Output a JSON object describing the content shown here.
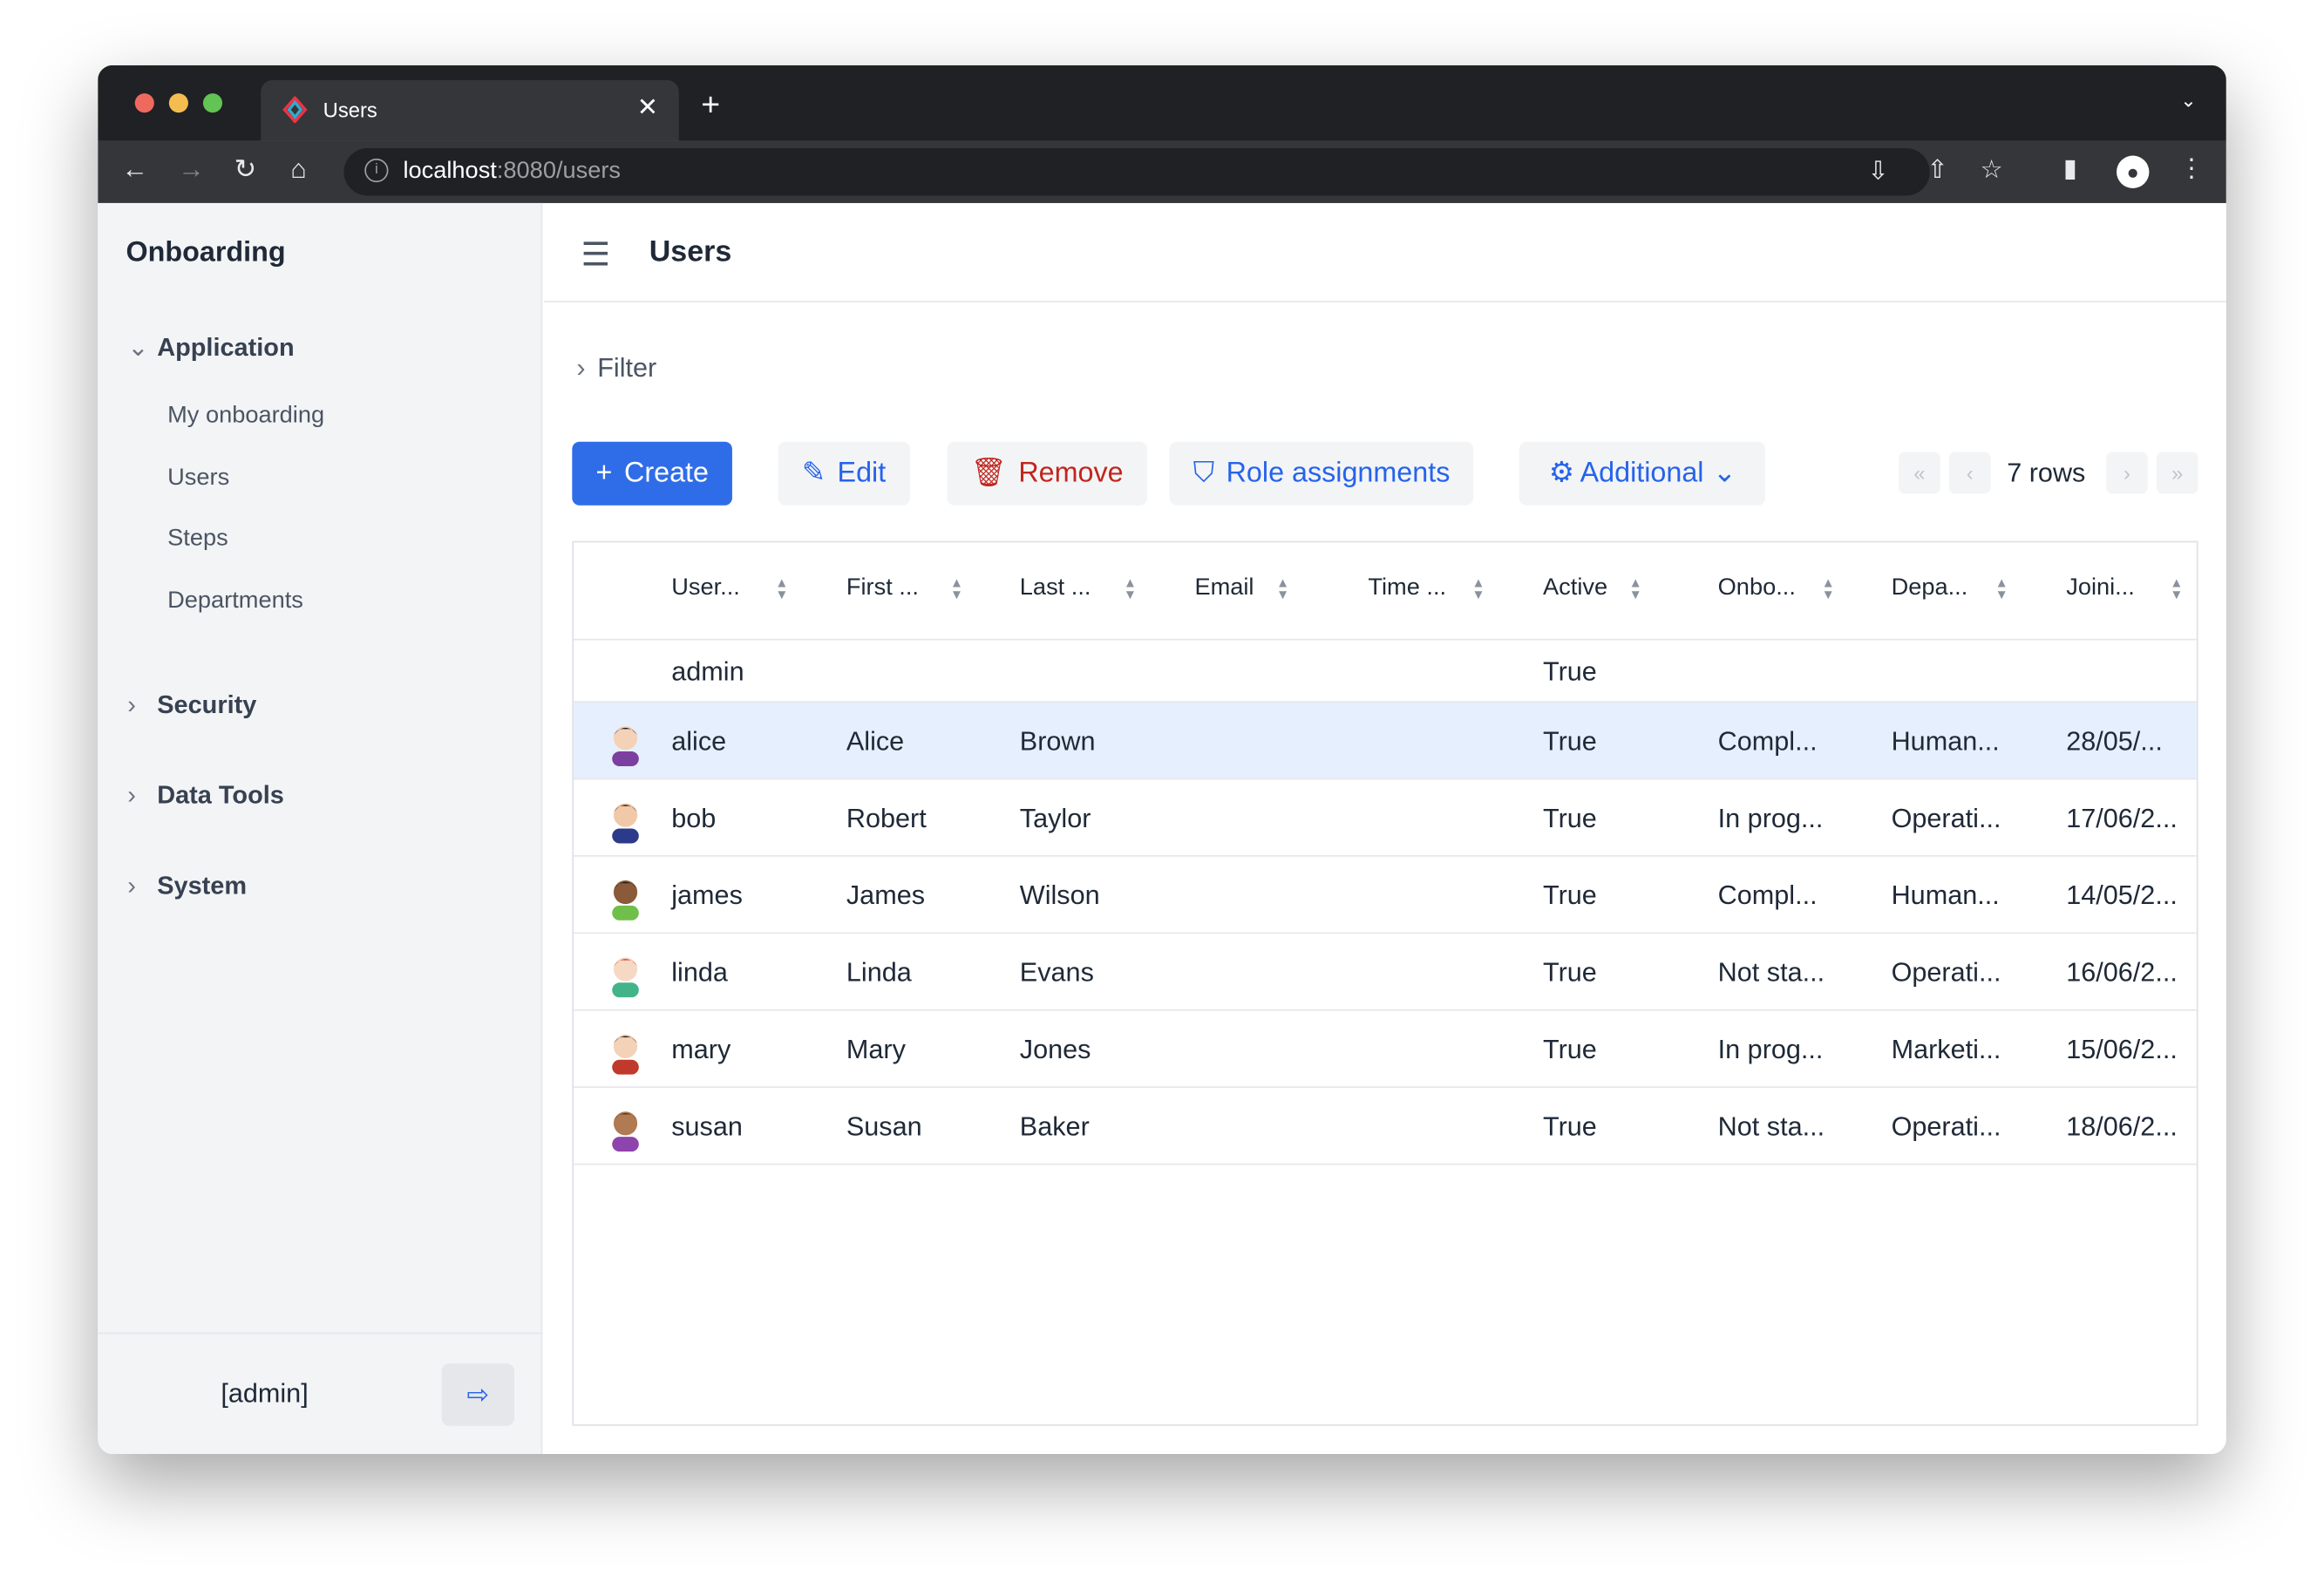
{
  "browser": {
    "tab_title": "Users",
    "url_host": "localhost",
    "url_path": ":8080/users",
    "colors": {
      "close": "#ee6a5f",
      "min": "#f5bd4f",
      "max": "#61c454"
    }
  },
  "sidebar": {
    "brand": "Onboarding",
    "groups": [
      {
        "label": "Application",
        "expanded": true,
        "items": [
          {
            "label": "My onboarding"
          },
          {
            "label": "Users"
          },
          {
            "label": "Steps"
          },
          {
            "label": "Departments"
          }
        ]
      },
      {
        "label": "Security",
        "expanded": false
      },
      {
        "label": "Data Tools",
        "expanded": false
      },
      {
        "label": "System",
        "expanded": false
      }
    ],
    "user": "[admin]"
  },
  "header": {
    "title": "Users"
  },
  "filter": {
    "label": "Filter"
  },
  "toolbar": {
    "create": "Create",
    "edit": "Edit",
    "remove": "Remove",
    "role_assignments": "Role assignments",
    "additional": "Additional",
    "rows": "7 rows"
  },
  "table": {
    "columns": [
      "User...",
      "First ...",
      "Last ...",
      "Email",
      "Time ...",
      "Active",
      "Onbo...",
      "Depa...",
      "Joini..."
    ],
    "rows": [
      {
        "cells": [
          "admin",
          "",
          "",
          "",
          "",
          "True",
          "",
          "",
          ""
        ],
        "avatar": false
      },
      {
        "cells": [
          "alice",
          "Alice",
          "Brown",
          "",
          "",
          "True",
          "Compl...",
          "Human...",
          "28/05/..."
        ],
        "avatar": true,
        "selected": true
      },
      {
        "cells": [
          "bob",
          "Robert",
          "Taylor",
          "",
          "",
          "True",
          "In prog...",
          "Operati...",
          "17/06/2..."
        ],
        "avatar": true
      },
      {
        "cells": [
          "james",
          "James",
          "Wilson",
          "",
          "",
          "True",
          "Compl...",
          "Human...",
          "14/05/2..."
        ],
        "avatar": true
      },
      {
        "cells": [
          "linda",
          "Linda",
          "Evans",
          "",
          "",
          "True",
          "Not sta...",
          "Operati...",
          "16/06/2..."
        ],
        "avatar": true
      },
      {
        "cells": [
          "mary",
          "Mary",
          "Jones",
          "",
          "",
          "True",
          "In prog...",
          "Marketi...",
          "15/06/2..."
        ],
        "avatar": true
      },
      {
        "cells": [
          "susan",
          "Susan",
          "Baker",
          "",
          "",
          "True",
          "Not sta...",
          "Operati...",
          "18/06/2..."
        ],
        "avatar": true
      }
    ]
  },
  "accent": "#2f6de8"
}
